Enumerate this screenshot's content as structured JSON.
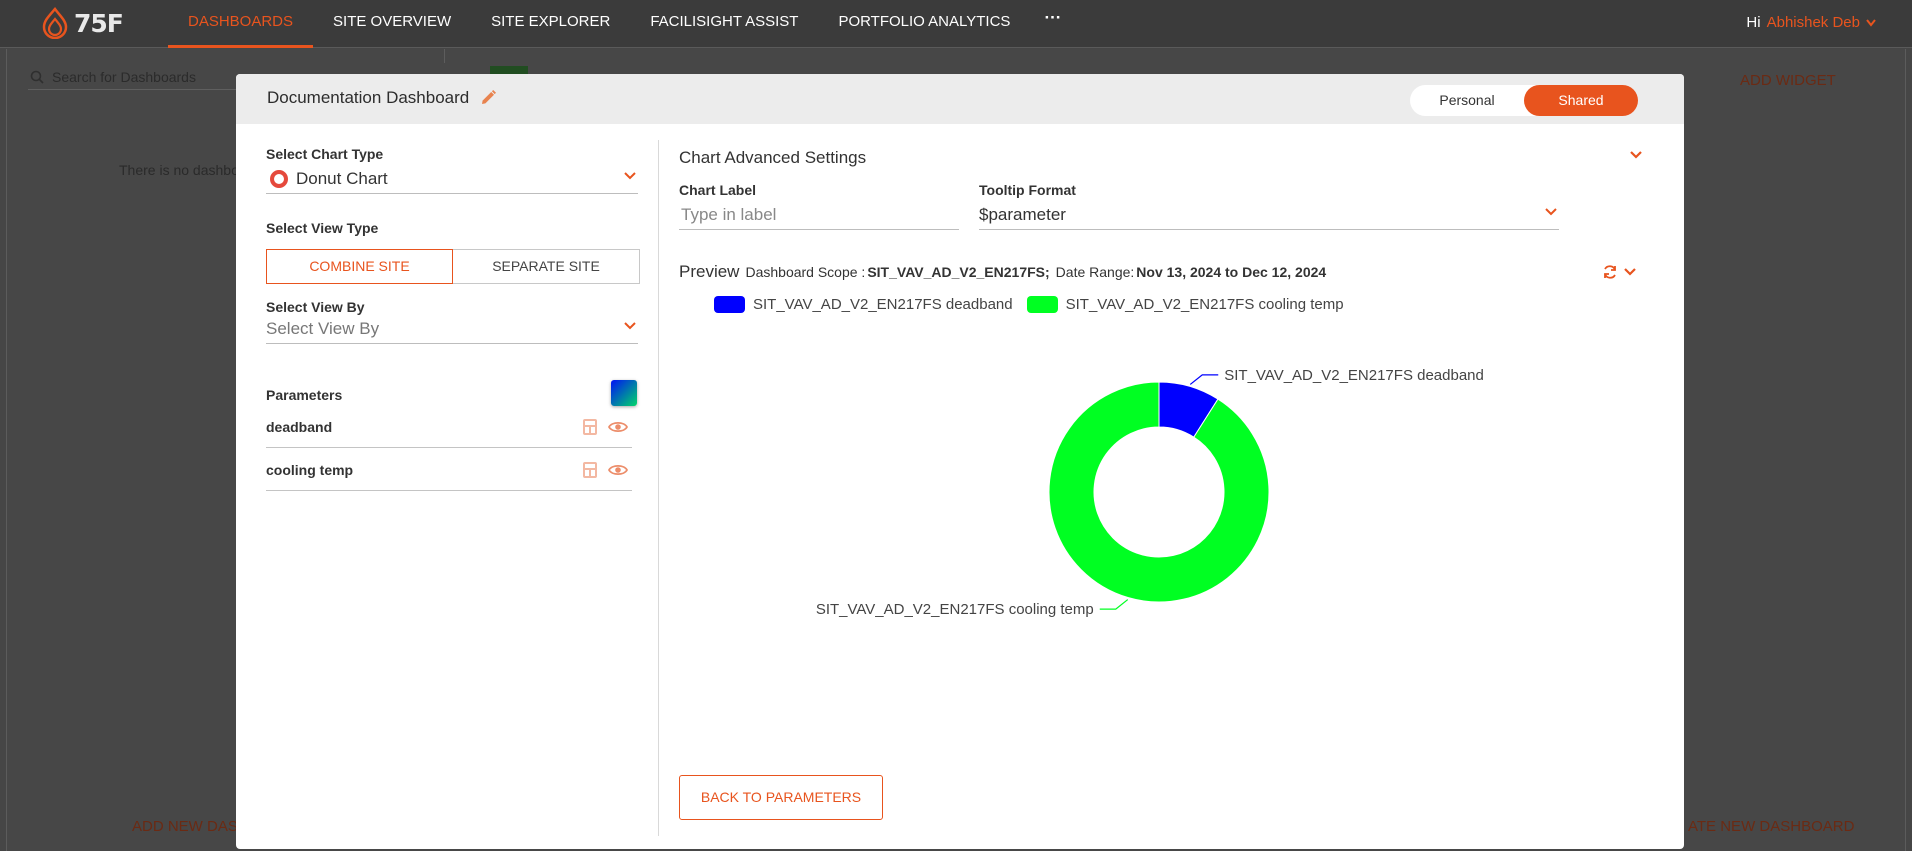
{
  "app": {
    "logo_text": "75F",
    "nav": [
      {
        "label": "DASHBOARDS",
        "active": true
      },
      {
        "label": "SITE OVERVIEW",
        "active": false
      },
      {
        "label": "SITE EXPLORER",
        "active": false
      },
      {
        "label": "FACILISIGHT ASSIST",
        "active": false
      },
      {
        "label": "PORTFOLIO ANALYTICS",
        "active": false
      }
    ],
    "nav_more": "···",
    "greeting": "Hi",
    "user_name": "Abhishek Deb",
    "accent_color": "#e8541e"
  },
  "background": {
    "search_placeholder": "Search for Dashboards",
    "empty_message": "There is no dashbo",
    "add_new_label": "ADD NEW DAS",
    "add_widget_label": "ADD WIDGET",
    "create_new_label": "ATE NEW DASHBOARD"
  },
  "modal": {
    "title": "Documentation Dashboard",
    "toggle": {
      "personal": "Personal",
      "shared": "Shared",
      "selected": "Shared"
    },
    "left": {
      "chart_type_label": "Select Chart Type",
      "chart_type_value": "Donut Chart",
      "view_type_label": "Select View Type",
      "view_type_options": [
        "COMBINE SITE",
        "SEPARATE SITE"
      ],
      "view_type_selected": "COMBINE SITE",
      "view_by_label": "Select View By",
      "view_by_placeholder": "Select View By",
      "parameters_label": "Parameters",
      "parameters": [
        {
          "name": "deadband"
        },
        {
          "name": "cooling temp"
        }
      ]
    },
    "right": {
      "advanced_title": "Chart Advanced Settings",
      "chart_label_label": "Chart Label",
      "chart_label_placeholder": "Type in label",
      "tooltip_label": "Tooltip Format",
      "tooltip_value": "$parameter",
      "preview_title": "Preview",
      "scope_label": "Dashboard Scope :",
      "scope_value": "SIT_VAV_AD_V2_EN217FS;",
      "date_label": "Date Range:",
      "date_value": "Nov 13, 2024 to Dec 12, 2024",
      "back_button": "BACK TO PARAMETERS"
    }
  },
  "chart_data": {
    "type": "pie",
    "labels": [
      "SIT_VAV_AD_V2_EN217FS deadband",
      "SIT_VAV_AD_V2_EN217FS cooling temp"
    ],
    "values": [
      9,
      91
    ],
    "colors": [
      "#0000ff",
      "#00ff22"
    ],
    "legend_position": "top-left"
  }
}
